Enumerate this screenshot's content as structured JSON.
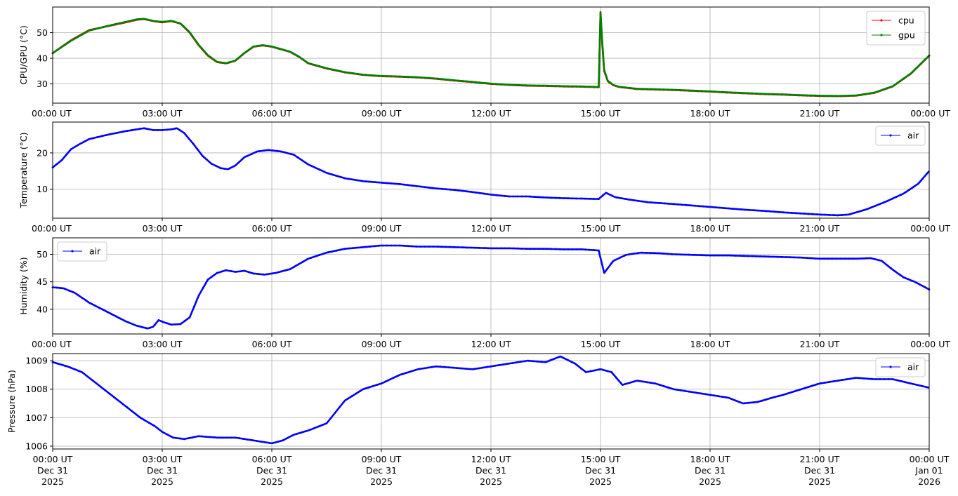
{
  "time_ticks": [
    "00:00 UT",
    "03:00 UT",
    "06:00 UT",
    "09:00 UT",
    "12:00 UT",
    "15:00 UT",
    "18:00 UT",
    "21:00 UT",
    "00:00 UT"
  ],
  "time_ticks_bottom": [
    [
      "00:00 UT",
      "Dec 31",
      "2025"
    ],
    [
      "03:00 UT",
      "Dec 31",
      "2025"
    ],
    [
      "06:00 UT",
      "Dec 31",
      "2025"
    ],
    [
      "09:00 UT",
      "Dec 31",
      "2025"
    ],
    [
      "12:00 UT",
      "Dec 31",
      "2025"
    ],
    [
      "15:00 UT",
      "Dec 31",
      "2025"
    ],
    [
      "18:00 UT",
      "Dec 31",
      "2025"
    ],
    [
      "21:00 UT",
      "Dec 31",
      "2025"
    ],
    [
      "00:00 UT",
      "Jan 01",
      "2026"
    ]
  ],
  "chart_data": [
    {
      "type": "line",
      "ylabel": "CPU/GPU (°C)",
      "x_unit": "hours UT since 00:00 UT Dec 31 2025",
      "xlim": [
        0,
        24
      ],
      "ylim": [
        22.5,
        60
      ],
      "yticks": [
        30,
        40,
        50
      ],
      "grid": true,
      "legend": "top-right",
      "series": [
        {
          "name": "cpu",
          "color": "#ff0000",
          "x": [
            0,
            0.5,
            1,
            1.5,
            2,
            2.3,
            2.5,
            2.75,
            3,
            3.25,
            3.5,
            3.75,
            4,
            4.25,
            4.5,
            4.75,
            5,
            5.25,
            5.5,
            5.75,
            6,
            6.25,
            6.5,
            6.75,
            7,
            7.5,
            8,
            8.5,
            9,
            9.5,
            10,
            10.5,
            11,
            11.5,
            12,
            12.5,
            13,
            13.5,
            14,
            14.5,
            14.95,
            15.0,
            15.05,
            15.1,
            15.2,
            15.35,
            15.5,
            16,
            16.5,
            17,
            17.5,
            18,
            18.5,
            19,
            19.5,
            20,
            20.5,
            21,
            21.5,
            22,
            22.5,
            23,
            23.5,
            24
          ],
          "values": [
            42,
            47,
            51,
            52.5,
            54,
            55,
            55.3,
            54.5,
            54,
            54.5,
            53.5,
            50,
            45,
            41,
            38.5,
            38,
            39,
            42,
            44.5,
            45,
            44.5,
            43.5,
            42.5,
            40.5,
            38,
            36,
            34.5,
            33.5,
            33,
            32.8,
            32.5,
            32,
            31.3,
            30.7,
            30,
            29.6,
            29.3,
            29.2,
            29,
            28.9,
            28.7,
            58,
            45,
            35,
            31,
            29.5,
            28.8,
            28,
            27.8,
            27.6,
            27.3,
            27,
            26.6,
            26.3,
            26,
            25.8,
            25.5,
            25.3,
            25.2,
            25.4,
            26.5,
            29,
            34,
            41
          ]
        },
        {
          "name": "gpu",
          "color": "#008000",
          "x": [
            0,
            0.5,
            1,
            1.5,
            2,
            2.3,
            2.5,
            2.75,
            3,
            3.25,
            3.5,
            3.75,
            4,
            4.25,
            4.5,
            4.75,
            5,
            5.25,
            5.5,
            5.75,
            6,
            6.25,
            6.5,
            6.75,
            7,
            7.5,
            8,
            8.5,
            9,
            9.5,
            10,
            10.5,
            11,
            11.5,
            12,
            12.5,
            13,
            13.5,
            14,
            14.5,
            14.95,
            15.0,
            15.05,
            15.1,
            15.2,
            15.35,
            15.5,
            16,
            16.5,
            17,
            17.5,
            18,
            18.5,
            19,
            19.5,
            20,
            20.5,
            21,
            21.5,
            22,
            22.5,
            23,
            23.5,
            24
          ],
          "values": [
            42,
            46.8,
            50.8,
            52.6,
            54.2,
            55.2,
            55.4,
            54.6,
            54.2,
            54.6,
            53.6,
            50.2,
            45.2,
            41.2,
            38.6,
            38.1,
            39.1,
            42.1,
            44.6,
            45.1,
            44.6,
            43.6,
            42.6,
            40.6,
            38.1,
            36.1,
            34.6,
            33.6,
            33.1,
            32.9,
            32.6,
            32.1,
            31.4,
            30.8,
            30.1,
            29.7,
            29.4,
            29.3,
            29.1,
            29,
            28.8,
            58,
            46,
            35.5,
            31.2,
            29.6,
            28.9,
            28.1,
            27.9,
            27.7,
            27.4,
            27.1,
            26.7,
            26.4,
            26.1,
            25.9,
            25.6,
            25.4,
            25.3,
            25.5,
            26.6,
            29.1,
            34.1,
            41.1
          ]
        }
      ]
    },
    {
      "type": "line",
      "ylabel": "Temperature (°C)",
      "x_unit": "hours UT since 00:00 UT Dec 31 2025",
      "xlim": [
        0,
        24
      ],
      "ylim": [
        2,
        28.5
      ],
      "yticks": [
        10,
        20
      ],
      "grid": true,
      "legend": "top-right",
      "series": [
        {
          "name": "air",
          "color": "#0000ff",
          "x": [
            0,
            0.25,
            0.5,
            0.75,
            1,
            1.5,
            2,
            2.5,
            2.75,
            3,
            3.25,
            3.4,
            3.6,
            3.85,
            4.1,
            4.35,
            4.6,
            4.8,
            5,
            5.25,
            5.6,
            5.9,
            6.25,
            6.6,
            7,
            7.5,
            8,
            8.5,
            9,
            9.5,
            10,
            10.5,
            11,
            11.5,
            12,
            12.5,
            13,
            13.5,
            14,
            14.5,
            14.95,
            15.15,
            15.4,
            15.8,
            16.3,
            17,
            17.5,
            18,
            18.5,
            19,
            19.5,
            20,
            20.5,
            21,
            21.5,
            21.8,
            22.3,
            22.8,
            23.3,
            23.7,
            24
          ],
          "values": [
            16,
            18,
            21,
            22.5,
            23.8,
            25,
            26,
            26.8,
            26.3,
            26.3,
            26.5,
            26.8,
            25.5,
            22.5,
            19.2,
            17,
            15.8,
            15.5,
            16.5,
            18.8,
            20.4,
            20.8,
            20.4,
            19.5,
            16.8,
            14.5,
            13,
            12.2,
            11.8,
            11.4,
            10.8,
            10.2,
            9.8,
            9.2,
            8.5,
            8,
            8,
            7.7,
            7.5,
            7.4,
            7.3,
            9,
            7.8,
            7.1,
            6.4,
            5.9,
            5.5,
            5.1,
            4.7,
            4.3,
            4,
            3.6,
            3.3,
            3,
            2.8,
            3,
            4.5,
            6.5,
            8.8,
            11.5,
            15
          ]
        }
      ]
    },
    {
      "type": "line",
      "ylabel": "Humidity (%)",
      "x_unit": "hours UT since 00:00 UT Dec 31 2025",
      "xlim": [
        0,
        24
      ],
      "ylim": [
        35.5,
        53
      ],
      "yticks": [
        40,
        45,
        50
      ],
      "grid": true,
      "legend": "top-left",
      "series": [
        {
          "name": "air",
          "color": "#0000ff",
          "x": [
            0,
            0.3,
            0.6,
            1,
            1.5,
            2,
            2.3,
            2.6,
            2.75,
            2.9,
            3.1,
            3.25,
            3.5,
            3.75,
            4,
            4.25,
            4.5,
            4.75,
            5,
            5.25,
            5.5,
            5.8,
            6.1,
            6.5,
            7,
            7.5,
            8,
            8.5,
            9,
            9.5,
            10,
            10.5,
            11,
            11.5,
            12,
            12.5,
            13,
            13.5,
            14,
            14.5,
            14.95,
            15.1,
            15.35,
            15.7,
            16.1,
            16.6,
            17,
            17.5,
            18,
            18.5,
            19,
            19.5,
            20,
            20.5,
            21,
            21.5,
            22,
            22.4,
            22.7,
            23,
            23.3,
            23.6,
            24
          ],
          "values": [
            44,
            43.8,
            43,
            41.2,
            39.5,
            37.8,
            37,
            36.5,
            36.8,
            38,
            37.5,
            37.2,
            37.3,
            38.5,
            42.5,
            45.4,
            46.6,
            47.1,
            46.8,
            47,
            46.5,
            46.3,
            46.6,
            47.3,
            49.2,
            50.3,
            51,
            51.3,
            51.6,
            51.6,
            51.4,
            51.4,
            51.3,
            51.2,
            51.1,
            51.1,
            51,
            51,
            50.9,
            50.9,
            50.7,
            46.6,
            48.8,
            49.9,
            50.3,
            50.2,
            50,
            49.9,
            49.8,
            49.8,
            49.7,
            49.6,
            49.5,
            49.4,
            49.2,
            49.2,
            49.2,
            49.3,
            48.8,
            47.2,
            45.8,
            45,
            43.6
          ]
        }
      ]
    },
    {
      "type": "line",
      "ylabel": "Pressure (hPa)",
      "x_unit": "hours UT since 00:00 UT Dec 31 2025",
      "xlim": [
        0,
        24
      ],
      "ylim": [
        1005.9,
        1009.25
      ],
      "yticks": [
        1006,
        1007,
        1008,
        1009
      ],
      "grid": true,
      "legend": "top-right",
      "series": [
        {
          "name": "air",
          "color": "#0000ff",
          "x": [
            0,
            0.4,
            0.8,
            1.2,
            1.6,
            2,
            2.4,
            2.8,
            3,
            3.3,
            3.6,
            4,
            4.5,
            5,
            5.5,
            6,
            6.3,
            6.6,
            7,
            7.5,
            8,
            8.5,
            9,
            9.5,
            10,
            10.5,
            11,
            11.5,
            12,
            12.5,
            13,
            13.5,
            13.9,
            14.3,
            14.6,
            15,
            15.3,
            15.6,
            16,
            16.5,
            17,
            17.5,
            18,
            18.5,
            18.9,
            19.3,
            19.7,
            20,
            20.5,
            21,
            21.5,
            22,
            22.5,
            23,
            23.5,
            24
          ],
          "values": [
            1008.95,
            1008.8,
            1008.6,
            1008.2,
            1007.8,
            1007.4,
            1007.0,
            1006.7,
            1006.5,
            1006.3,
            1006.25,
            1006.35,
            1006.3,
            1006.3,
            1006.2,
            1006.1,
            1006.2,
            1006.4,
            1006.55,
            1006.8,
            1007.6,
            1008.0,
            1008.2,
            1008.5,
            1008.7,
            1008.8,
            1008.75,
            1008.7,
            1008.8,
            1008.9,
            1009.0,
            1008.95,
            1009.15,
            1008.9,
            1008.6,
            1008.7,
            1008.6,
            1008.15,
            1008.3,
            1008.2,
            1008.0,
            1007.9,
            1007.8,
            1007.7,
            1007.5,
            1007.55,
            1007.7,
            1007.8,
            1008.0,
            1008.2,
            1008.3,
            1008.4,
            1008.35,
            1008.35,
            1008.2,
            1008.05
          ]
        }
      ]
    }
  ]
}
